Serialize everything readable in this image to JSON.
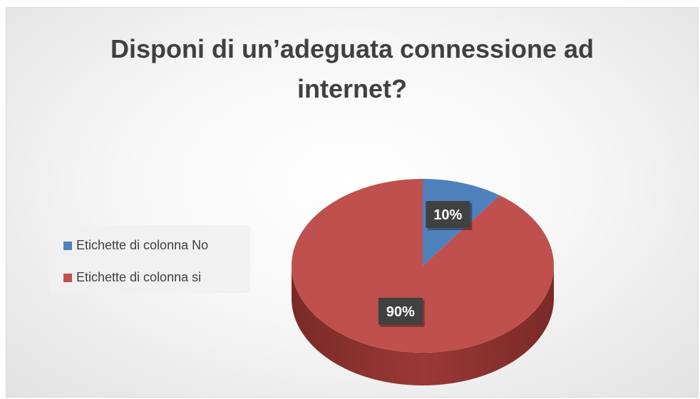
{
  "chart_data": {
    "type": "pie",
    "title_lines": [
      "Disponi di un’adeguata connessione ad",
      "internet?"
    ],
    "categories": [
      "Etichette di colonna No",
      "Etichette di colonna si"
    ],
    "values": [
      10,
      90
    ],
    "labels": [
      "10%",
      "90%"
    ],
    "colors": [
      "#4f81bd",
      "#c0504d"
    ],
    "legend_position": "left",
    "style": "3d"
  }
}
